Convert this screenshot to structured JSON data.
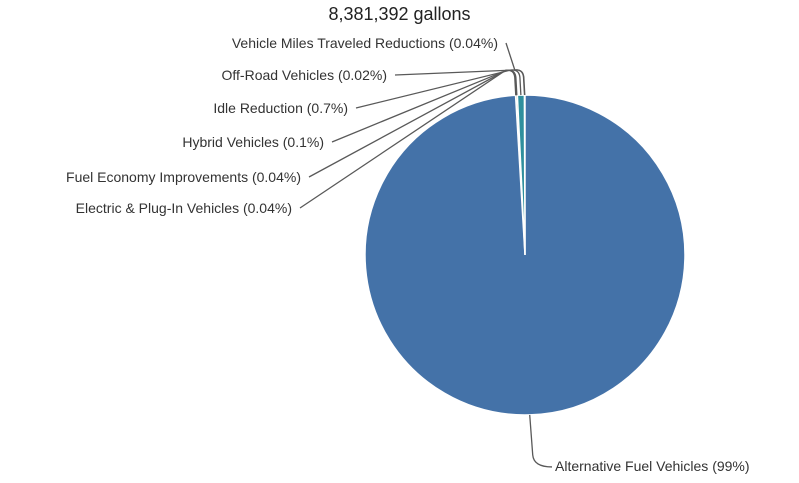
{
  "chart_data": {
    "type": "pie",
    "title": "8,381,392 gallons",
    "series": [
      {
        "values": [
          {
            "name": "Alternative Fuel Vehicles",
            "label": "Alternative Fuel Vehicles (99%)",
            "value": 99.06,
            "color": "#4472a8"
          },
          {
            "name": "Electric & Plug-In Vehicles",
            "label": "Electric & Plug-In Vehicles (0.04%)",
            "value": 0.04,
            "color": "#5b9bd5"
          },
          {
            "name": "Fuel Economy Improvements",
            "label": "Fuel Economy Improvements (0.04%)",
            "value": 0.04,
            "color": "#70ad47"
          },
          {
            "name": "Hybrid Vehicles",
            "label": "Hybrid Vehicles (0.1%)",
            "value": 0.1,
            "color": "#9e480e"
          },
          {
            "name": "Idle Reduction",
            "label": "Idle Reduction (0.7%)",
            "value": 0.7,
            "color": "#2f8f9d"
          },
          {
            "name": "Off-Road Vehicles",
            "label": "Off-Road Vehicles (0.02%)",
            "value": 0.02,
            "color": "#a5a5a5"
          },
          {
            "name": "Vehicle Miles Traveled Reductions",
            "label": "Vehicle Miles Traveled Reductions (0.04%)",
            "value": 0.04,
            "color": "#ffc000"
          }
        ]
      }
    ],
    "slice_border_color": "#ffffff",
    "leader_line_color": "#595959"
  }
}
